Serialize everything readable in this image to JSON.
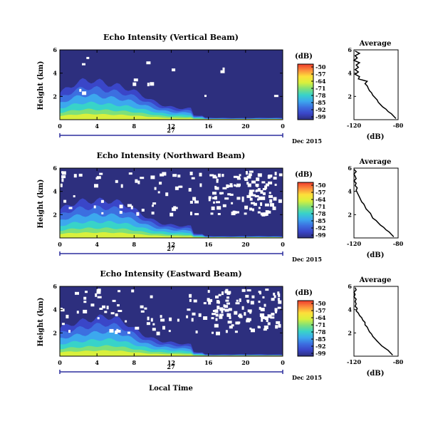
{
  "figure": {
    "xlabel": "Local Time",
    "date_label": "Dec 2015",
    "day_label": "27"
  },
  "colorbar": {
    "unit": "(dB)",
    "ticks": [
      "-50",
      "-57",
      "-64",
      "-71",
      "-78",
      "-85",
      "-92",
      "-99"
    ],
    "colors": [
      "#ef3b2c",
      "#fc8d3c",
      "#fde03a",
      "#d9f03c",
      "#7ee07a",
      "#38d3c9",
      "#3ca8ee",
      "#3c6fe0",
      "#3a46c8",
      "#2d2f7e"
    ]
  },
  "chart_data": [
    {
      "type": "heatmap",
      "title": "Echo Intensity (Vertical Beam)",
      "ylabel": "Height (km)",
      "x_ticks": [
        "0",
        "4",
        "8",
        "12",
        "16",
        "20",
        "0"
      ],
      "xlim_hours": [
        0,
        24
      ],
      "y_ticks": [
        "2",
        "4",
        "6"
      ],
      "ylim_km": [
        0,
        6
      ],
      "profile": {
        "title": "Average",
        "xlabel": "(dB)",
        "x_ticks": [
          "-120",
          "-80"
        ],
        "xlim": [
          -120,
          -80
        ],
        "y_ticks": [
          "2",
          "4",
          "6"
        ],
        "height_km": [
          0.1,
          0.3,
          0.5,
          0.7,
          0.9,
          1.1,
          1.3,
          1.5,
          1.7,
          1.9,
          2.1,
          2.3,
          2.5,
          2.7,
          2.9,
          3.1,
          3.3,
          3.5,
          3.7,
          3.9,
          4.1,
          4.3,
          4.5,
          4.7,
          4.9,
          5.1,
          5.3,
          5.5,
          5.7,
          5.9
        ],
        "db": [
          -82,
          -84,
          -86,
          -89,
          -91,
          -94,
          -96,
          -98,
          -99,
          -101,
          -103,
          -104,
          -106,
          -107,
          -108,
          -110,
          -108,
          -116,
          -115,
          -119,
          -116,
          -119,
          -116,
          -118,
          -115,
          -120,
          -117,
          -119,
          -115,
          -119
        ]
      }
    },
    {
      "type": "heatmap",
      "title": "Echo Intensity (Northward Beam)",
      "ylabel": "Height (km)",
      "x_ticks": [
        "0",
        "4",
        "8",
        "12",
        "16",
        "20",
        "0"
      ],
      "xlim_hours": [
        0,
        24
      ],
      "y_ticks": [
        "2",
        "4",
        "6"
      ],
      "ylim_km": [
        0,
        6
      ],
      "profile": {
        "title": "Average",
        "xlabel": "(dB)",
        "x_ticks": [
          "-120",
          "-80"
        ],
        "xlim": [
          -120,
          -80
        ],
        "y_ticks": [
          "2",
          "4",
          "6"
        ],
        "height_km": [
          0.1,
          0.3,
          0.5,
          0.7,
          0.9,
          1.1,
          1.3,
          1.5,
          1.7,
          1.9,
          2.1,
          2.3,
          2.5,
          2.7,
          2.9,
          3.1,
          3.3,
          3.5,
          3.7,
          3.9,
          4.1,
          4.3,
          4.5,
          4.7,
          4.9,
          5.1,
          5.3,
          5.5,
          5.7,
          5.9
        ],
        "db": [
          -84,
          -86,
          -88,
          -91,
          -93,
          -96,
          -98,
          -100,
          -103,
          -104,
          -105,
          -107,
          -109,
          -110,
          -111,
          -113,
          -114,
          -115,
          -116,
          -117,
          -118,
          -117,
          -119,
          -118,
          -120,
          -118,
          -119,
          -120,
          -118,
          -120
        ]
      }
    },
    {
      "type": "heatmap",
      "title": "Echo Intensity (Eastward Beam)",
      "ylabel": "Height (km)",
      "x_ticks": [
        "0",
        "4",
        "8",
        "12",
        "16",
        "20",
        "0"
      ],
      "xlim_hours": [
        0,
        24
      ],
      "y_ticks": [
        "2",
        "4",
        "6"
      ],
      "ylim_km": [
        0,
        6
      ],
      "profile": {
        "title": "Average",
        "xlabel": "(dB)",
        "x_ticks": [
          "-120",
          "-80"
        ],
        "xlim": [
          -120,
          -80
        ],
        "y_ticks": [
          "2",
          "4",
          "6"
        ],
        "height_km": [
          0.1,
          0.3,
          0.5,
          0.7,
          0.9,
          1.1,
          1.3,
          1.5,
          1.7,
          1.9,
          2.1,
          2.3,
          2.5,
          2.7,
          2.9,
          3.1,
          3.3,
          3.5,
          3.7,
          3.9,
          4.1,
          4.3,
          4.5,
          4.7,
          4.9,
          5.1,
          5.3,
          5.5,
          5.7,
          5.9
        ],
        "db": [
          -85,
          -87,
          -89,
          -92,
          -95,
          -97,
          -99,
          -101,
          -103,
          -104,
          -106,
          -107,
          -108,
          -110,
          -110,
          -112,
          -113,
          -115,
          -116,
          -118,
          -117,
          -119,
          -118,
          -119,
          -118,
          -120,
          -119,
          -120,
          -118,
          -119
        ]
      }
    }
  ]
}
